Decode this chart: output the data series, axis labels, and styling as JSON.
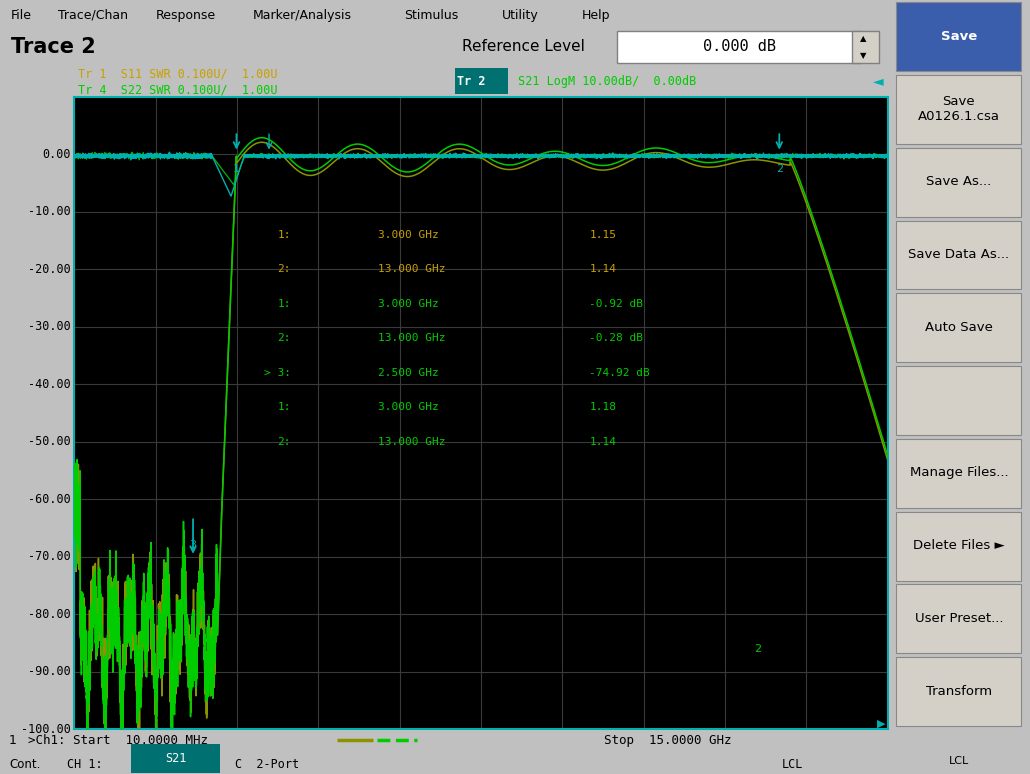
{
  "bg_color": "#c0c0c0",
  "plot_bg": "#000000",
  "grid_color": "#3a3a3a",
  "ymin": -100,
  "ymax": 10,
  "ytick_vals": [
    0,
    -10,
    -20,
    -30,
    -40,
    -50,
    -60,
    -70,
    -80,
    -90,
    -100
  ],
  "xstart": 0.01,
  "xstop": 15.0,
  "n_xdivs": 10,
  "tr1_color": "#c8a000",
  "tr2_color": "#00cc00",
  "tr4_color": "#00cc00",
  "swr_color": "#00b0b0",
  "s21_olive": "#8b9400",
  "title": "Trace 2",
  "ref_level": "0.000 dB",
  "tr1_label": "Tr 1  S11 SWR 0.100U/  1.00U",
  "tr2_label_prefix": "Tr 2",
  "tr2_label_suffix": " S21 LogM 10.00dB/  0.00dB",
  "tr4_label": "Tr 4  S22 SWR 0.100U/  1.00U",
  "tr_hl_color": "#007070",
  "menus": [
    "File",
    "Trace/Chan",
    "Response",
    "Marker/Analysis",
    "Stimulus",
    "Utility",
    "Help"
  ],
  "markers": [
    {
      "lbl": "1:",
      "freq": "3.000 GHz",
      "val": "1.15",
      "col": "#c8a000"
    },
    {
      "lbl": "2:",
      "freq": "13.000 GHz",
      "val": "1.14",
      "col": "#c8a000"
    },
    {
      "lbl": "1:",
      "freq": "3.000 GHz",
      "val": "-0.92 dB",
      "col": "#00cc00"
    },
    {
      "lbl": "2:",
      "freq": "13.000 GHz",
      "val": "-0.28 dB",
      "col": "#00cc00"
    },
    {
      "lbl": "> 3:",
      "freq": "2.500 GHz",
      "val": "-74.92 dB",
      "col": "#00cc00"
    },
    {
      "lbl": "1:",
      "freq": "3.000 GHz",
      "val": "1.18",
      "col": "#00cc00"
    },
    {
      "lbl": "2:",
      "freq": "13.000 GHz",
      "val": "1.14",
      "col": "#00cc00"
    }
  ],
  "sidebar_buttons": [
    {
      "text": "Save",
      "bg": "#3a5dac",
      "fg": "white"
    },
    {
      "text": "Save\nA0126.1.csa",
      "bg": "#d4d0c8",
      "fg": "black"
    },
    {
      "text": "Save As...",
      "bg": "#d4d0c8",
      "fg": "black"
    },
    {
      "text": "Save Data As...",
      "bg": "#d4d0c8",
      "fg": "black"
    },
    {
      "text": "Auto Save",
      "bg": "#d4d0c8",
      "fg": "black"
    },
    {
      "text": "",
      "bg": "#d4d0c8",
      "fg": "black"
    },
    {
      "text": "Manage Files...",
      "bg": "#d4d0c8",
      "fg": "black"
    },
    {
      "text": "Delete Files ►",
      "bg": "#d4d0c8",
      "fg": "black"
    },
    {
      "text": "User Preset...",
      "bg": "#d4d0c8",
      "fg": "black"
    },
    {
      "text": "Transform",
      "bg": "#d4d0c8",
      "fg": "black"
    }
  ],
  "bottom_start": ">Ch1: Start  10.0000 MHz",
  "bottom_stop": "Stop  15.0000 GHz",
  "bottom_cont": "Cont.",
  "bottom_ch1": "CH 1:",
  "bottom_s21": "S21",
  "bottom_port": "C  2-Port",
  "bottom_lcl": "LCL",
  "ch1_num": "1"
}
